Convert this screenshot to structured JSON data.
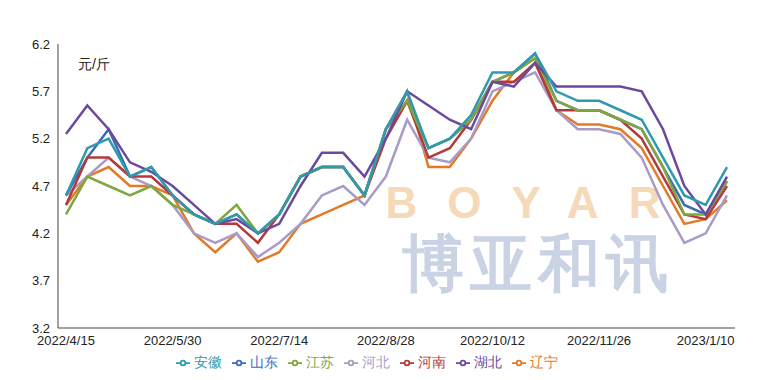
{
  "chart_data": {
    "type": "line",
    "ylabel": "元/斤",
    "annotations": [
      "BOYAR",
      "博亚和讯"
    ],
    "categories": [
      "2022/4/15",
      null,
      null,
      null,
      null,
      "2022/5/30",
      null,
      null,
      null,
      null,
      "2022/7/14",
      null,
      null,
      null,
      null,
      "2022/8/28",
      null,
      null,
      null,
      null,
      "2022/10/12",
      null,
      null,
      null,
      null,
      "2022/11/26",
      null,
      null,
      null,
      null,
      "2023/1/10",
      null
    ],
    "ylim": [
      3.2,
      6.2
    ],
    "yticks": [
      3.2,
      3.7,
      4.2,
      4.7,
      5.2,
      5.7,
      6.2
    ],
    "grid": false,
    "legend": "bottom",
    "series": [
      {
        "name": "辽宁",
        "color": "#E07B2A",
        "values": [
          4.5,
          4.8,
          4.9,
          4.7,
          4.7,
          4.6,
          4.2,
          4.0,
          4.2,
          3.9,
          4.0,
          4.3,
          4.4,
          4.5,
          4.6,
          5.3,
          5.7,
          4.9,
          4.9,
          5.2,
          5.6,
          5.9,
          6.05,
          5.5,
          5.35,
          5.35,
          5.3,
          5.1,
          4.7,
          4.3,
          4.35,
          4.55
        ]
      },
      {
        "name": "河北",
        "color": "#A99BC6",
        "values": [
          4.6,
          4.8,
          5.0,
          4.8,
          4.7,
          4.5,
          4.2,
          4.1,
          4.2,
          3.95,
          4.1,
          4.3,
          4.6,
          4.7,
          4.5,
          4.8,
          5.4,
          5.0,
          4.95,
          5.2,
          5.7,
          5.8,
          5.9,
          5.5,
          5.3,
          5.3,
          5.25,
          5.0,
          4.5,
          4.1,
          4.2,
          4.6
        ]
      },
      {
        "name": "山东",
        "color": "#3B6BB5",
        "values": [
          4.6,
          5.0,
          5.3,
          4.8,
          4.9,
          4.6,
          4.4,
          4.3,
          4.4,
          4.2,
          4.4,
          4.8,
          4.9,
          4.9,
          4.6,
          5.3,
          5.6,
          5.1,
          5.2,
          5.4,
          5.8,
          5.9,
          6.1,
          5.6,
          5.5,
          5.5,
          5.4,
          5.3,
          4.9,
          4.5,
          4.4,
          4.75
        ]
      },
      {
        "name": "河南",
        "color": "#B23A3A",
        "values": [
          4.5,
          5.0,
          5.0,
          4.8,
          4.8,
          4.6,
          4.4,
          4.3,
          4.3,
          4.1,
          4.4,
          4.8,
          4.9,
          4.9,
          4.6,
          5.2,
          5.6,
          5.0,
          5.1,
          5.4,
          5.8,
          5.8,
          6.0,
          5.5,
          5.5,
          5.5,
          5.4,
          5.2,
          4.8,
          4.4,
          4.35,
          4.7
        ]
      },
      {
        "name": "江苏",
        "color": "#7FA63F",
        "values": [
          4.4,
          4.8,
          4.7,
          4.6,
          4.7,
          4.5,
          4.4,
          4.3,
          4.5,
          4.2,
          4.4,
          4.8,
          4.9,
          4.9,
          4.6,
          5.3,
          5.6,
          5.1,
          5.2,
          5.4,
          5.8,
          5.9,
          6.05,
          5.6,
          5.5,
          5.5,
          5.4,
          5.3,
          4.9,
          4.4,
          4.4,
          4.75
        ]
      },
      {
        "name": "湖北",
        "color": "#6B4A9E",
        "values": [
          5.25,
          5.55,
          5.3,
          4.95,
          4.85,
          4.7,
          4.5,
          4.3,
          4.35,
          4.2,
          4.3,
          4.7,
          5.05,
          5.05,
          4.8,
          5.2,
          5.7,
          5.55,
          5.4,
          5.3,
          5.8,
          5.75,
          6.0,
          5.75,
          5.75,
          5.75,
          5.75,
          5.7,
          5.3,
          4.7,
          4.4,
          4.8
        ]
      },
      {
        "name": "安徽",
        "color": "#2E9AAE",
        "values": [
          4.6,
          5.1,
          5.2,
          4.8,
          4.9,
          4.6,
          4.4,
          4.3,
          4.4,
          4.2,
          4.4,
          4.8,
          4.9,
          4.9,
          4.6,
          5.3,
          5.7,
          5.1,
          5.2,
          5.45,
          5.9,
          5.9,
          6.1,
          5.7,
          5.6,
          5.6,
          5.5,
          5.4,
          5.0,
          4.6,
          4.5,
          4.9
        ]
      }
    ]
  }
}
